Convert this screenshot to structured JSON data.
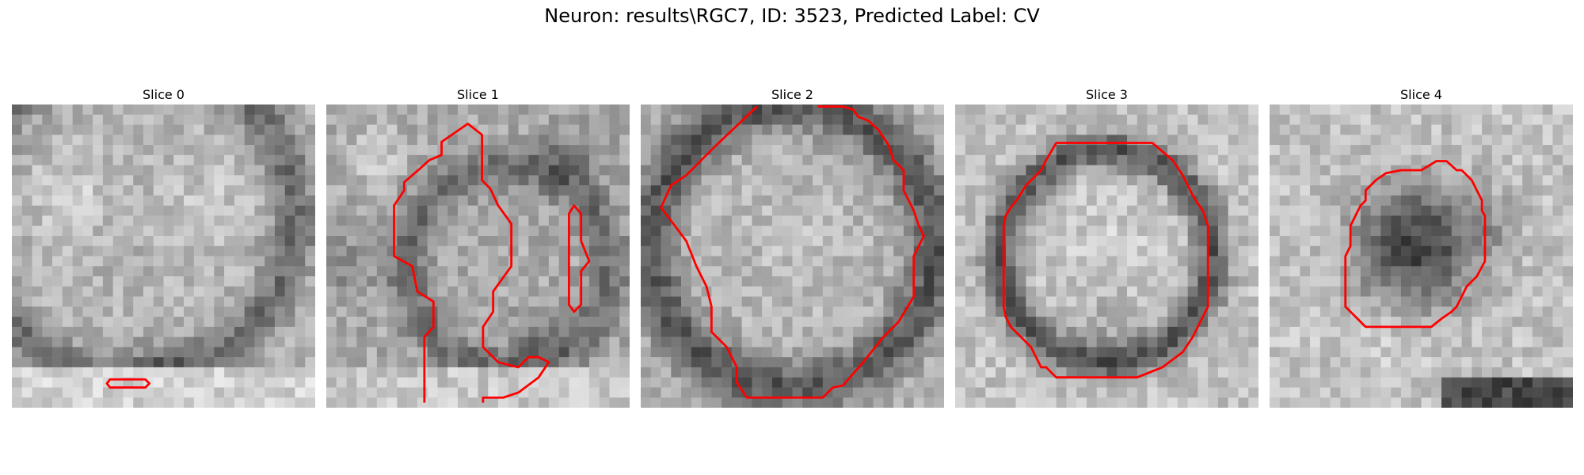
{
  "figure": {
    "title": "Neuron: results\\RGC7, ID: 3523, Predicted Label: CV"
  },
  "palette": {
    "contour": "#ff0000"
  },
  "slices": [
    {
      "label": "Slice 0",
      "icon": "grayscale-microscopy-patch"
    },
    {
      "label": "Slice 1",
      "icon": "grayscale-microscopy-patch"
    },
    {
      "label": "Slice 2",
      "icon": "grayscale-microscopy-patch"
    },
    {
      "label": "Slice 3",
      "icon": "grayscale-microscopy-patch"
    },
    {
      "label": "Slice 4",
      "icon": "grayscale-microscopy-patch"
    }
  ]
}
